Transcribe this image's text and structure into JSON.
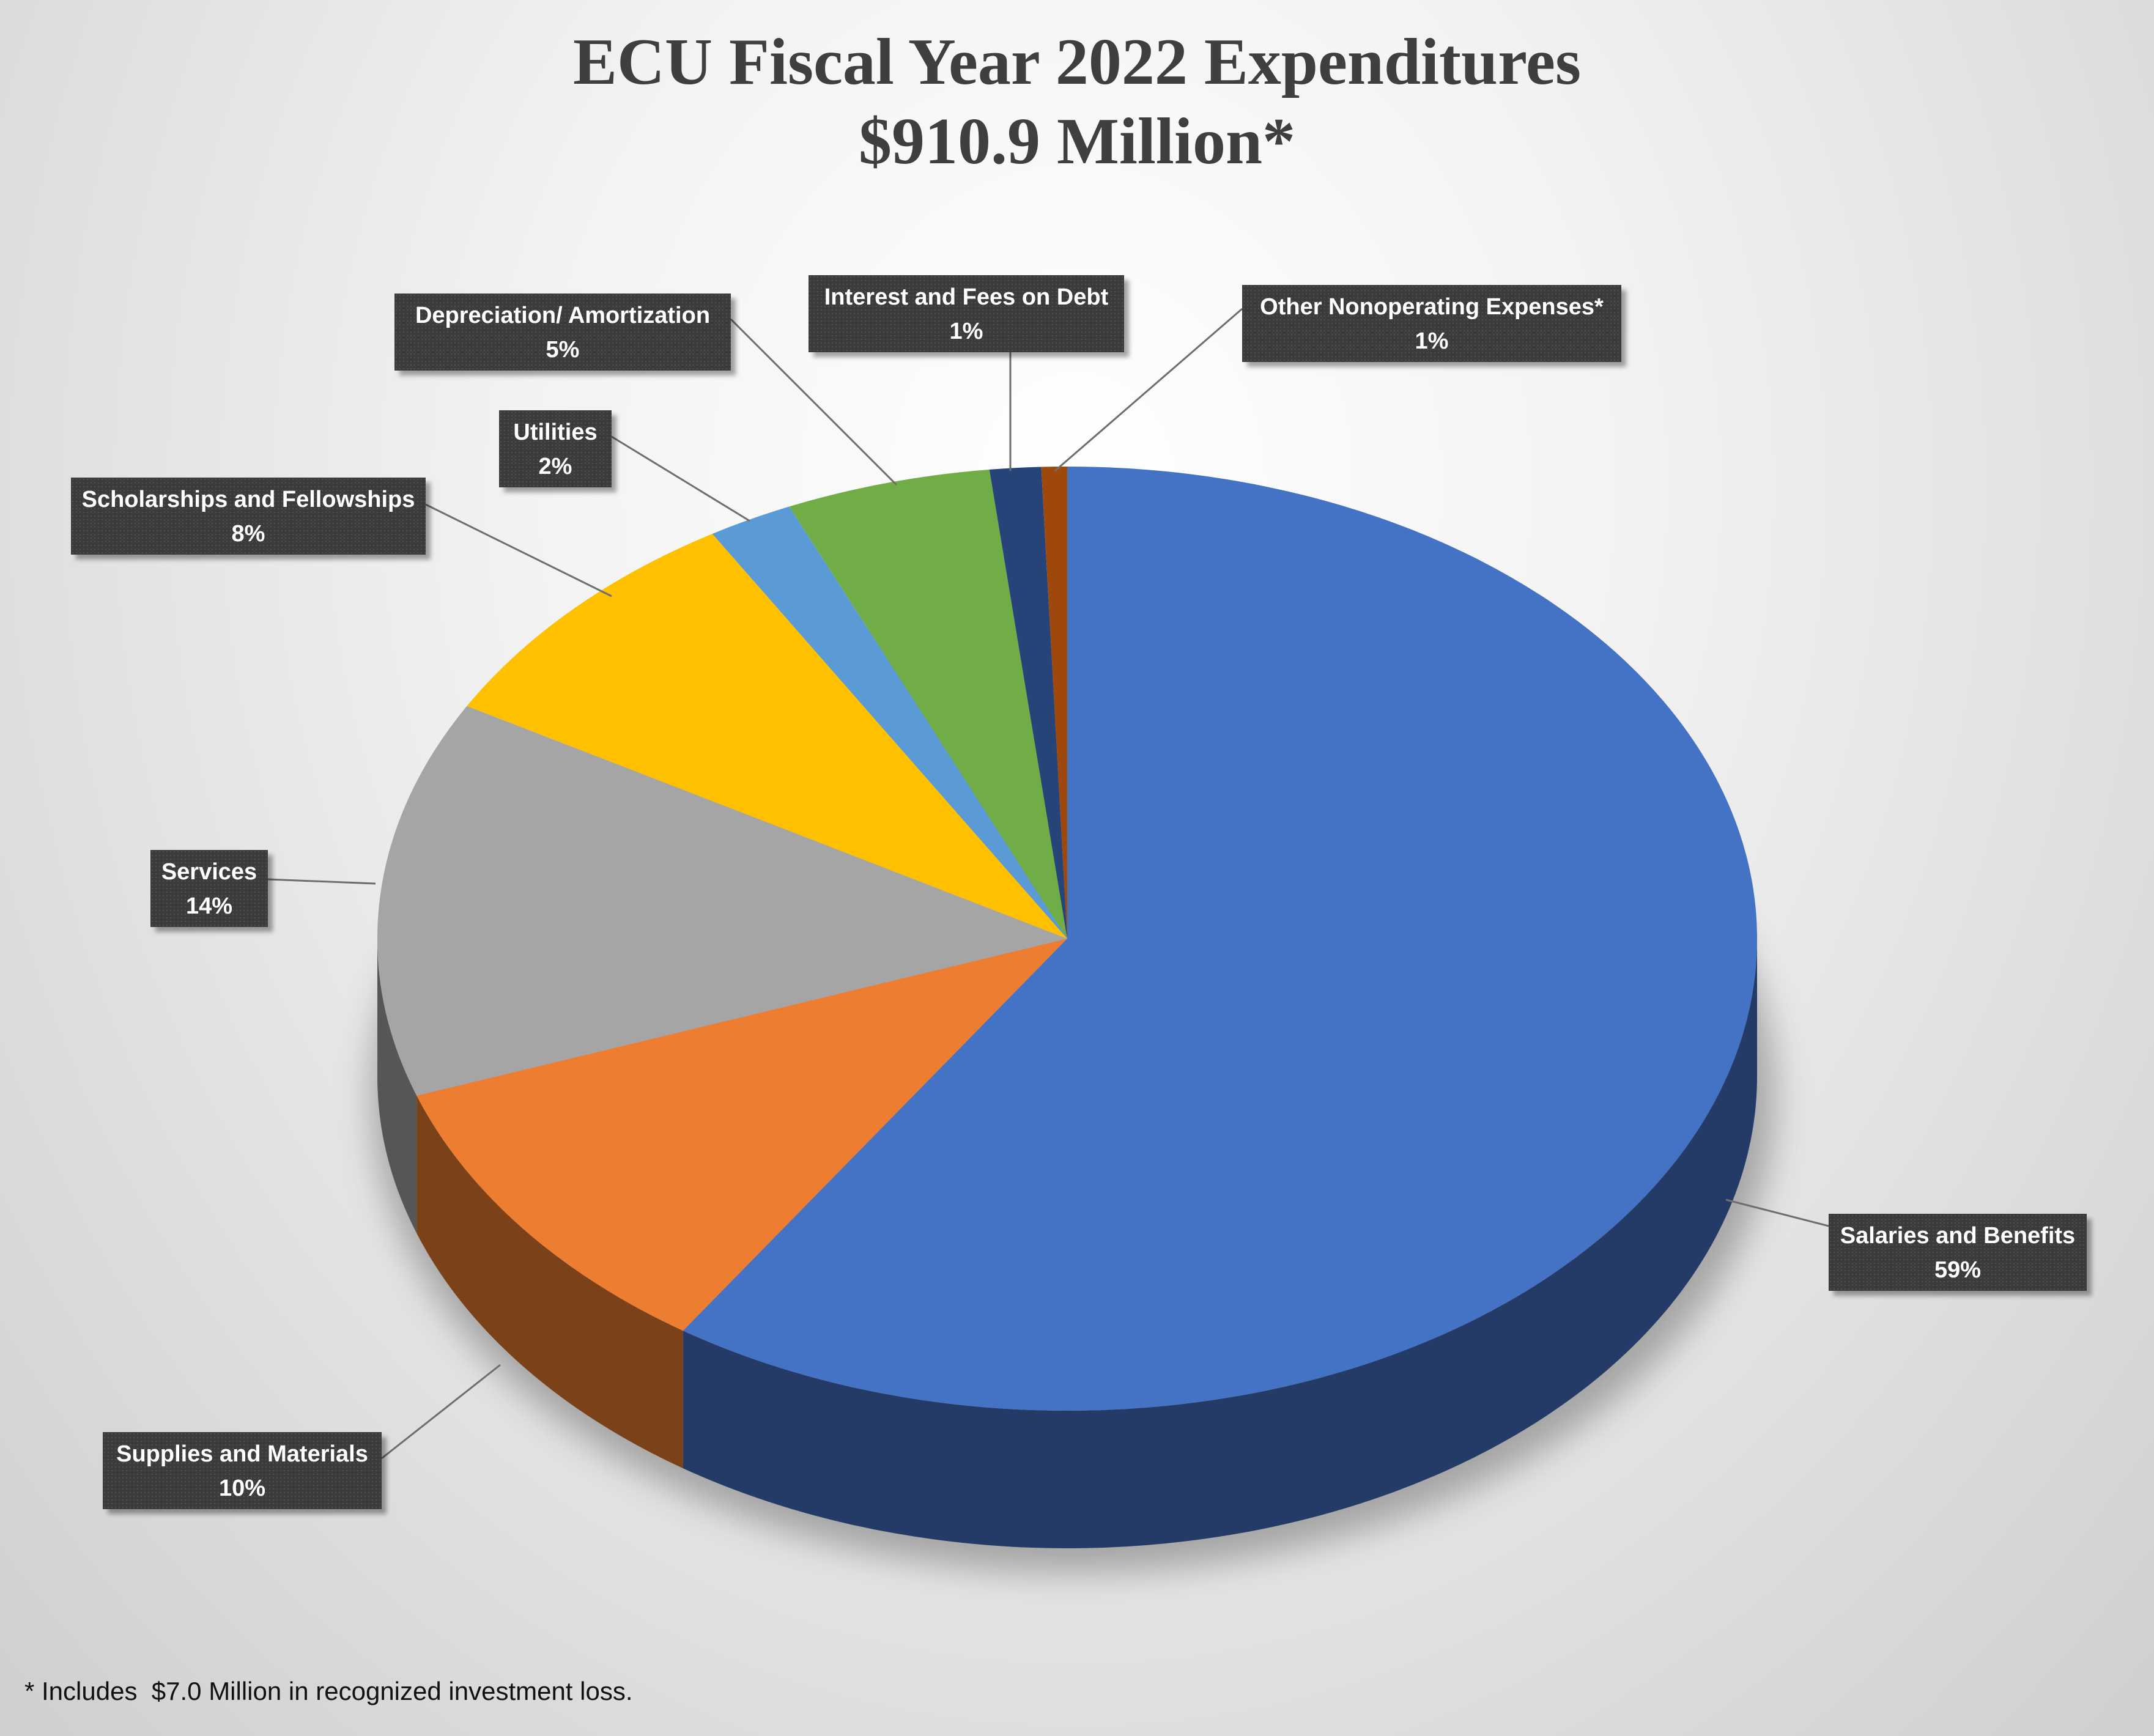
{
  "chart_data": {
    "type": "pie",
    "title": "ECU Fiscal Year 2022 Expenditures",
    "subtitle": "$910.9 Million*",
    "slices": [
      {
        "name": "Salaries and Benefits",
        "label": "59%",
        "value": 59.4,
        "color": "#4472c4"
      },
      {
        "name": "Supplies and Materials",
        "label": "10%",
        "value": 10.2,
        "color": "#ed7d31"
      },
      {
        "name": "Services",
        "label": "14%",
        "value": 13.6,
        "color": "#a5a5a5"
      },
      {
        "name": "Scholarships and Fellowships",
        "label": "8%",
        "value": 8.2,
        "color": "#ffc000"
      },
      {
        "name": "Utilities",
        "label": "2%",
        "value": 2.0,
        "color": "#5b9bd5"
      },
      {
        "name": "Depreciation/ Amortization",
        "label": "5%",
        "value": 4.8,
        "color": "#70ad47"
      },
      {
        "name": "Interest and Fees on Debt",
        "label": "1%",
        "value": 1.2,
        "color": "#264478"
      },
      {
        "name": "Other Nonoperating Expenses*",
        "label": "1%",
        "value": 0.6,
        "color": "#9e480e"
      }
    ]
  },
  "footnote": "* Includes  $7.0 Million in recognized investment loss."
}
